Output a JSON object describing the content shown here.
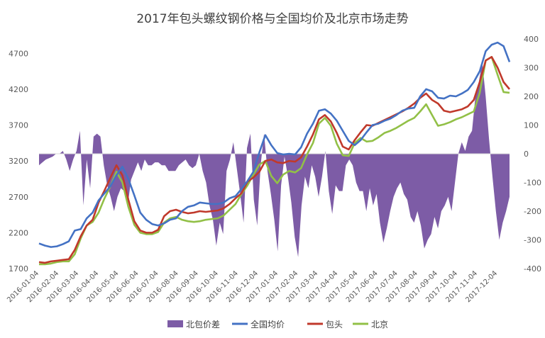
{
  "chart_data": {
    "type": "line",
    "title": "2017年包头螺纹钢价格与全国均价及北京市场走势",
    "legend_position": "bottom",
    "x_ticks": [
      "2016-01-04",
      "2016-02-04",
      "2016-03-04",
      "2016-04-04",
      "2016-05-04",
      "2016-06-04",
      "2016-07-04",
      "2016-08-04",
      "2016-09-04",
      "2016-10-04",
      "2016-11-04",
      "2016-12-04",
      "2017-01-04",
      "2017-02-04",
      "2017-03-04",
      "2017-04-04",
      "2017-05-04",
      "2017-06-04",
      "2017-07-04",
      "2017-08-04",
      "2017-09-04",
      "2017-10-04",
      "2017-11-04",
      "2017-12-04"
    ],
    "y_left": {
      "min": 1700,
      "max": 4900,
      "ticks": [
        1700,
        2200,
        2700,
        3200,
        3700,
        4200,
        4700
      ]
    },
    "y_right": {
      "min": -400,
      "max": 400,
      "ticks": [
        -400,
        -300,
        -200,
        -100,
        0,
        100,
        200,
        300,
        400
      ]
    },
    "grid": false,
    "series": [
      {
        "name": "北包价差",
        "kind": "area",
        "axis": "right",
        "color": "#7d5ca6",
        "values": [
          -40,
          -30,
          -20,
          -15,
          -10,
          0,
          0,
          10,
          -20,
          -60,
          -20,
          10,
          80,
          -180,
          -20,
          -120,
          60,
          70,
          60,
          -40,
          -110,
          -150,
          -200,
          -150,
          -120,
          -130,
          -180,
          -90,
          -60,
          -30,
          -60,
          -20,
          -40,
          -40,
          -30,
          -30,
          -40,
          -40,
          -60,
          -60,
          -60,
          -40,
          -30,
          -20,
          -40,
          -50,
          -40,
          0,
          -60,
          -100,
          -180,
          -230,
          -320,
          -240,
          -280,
          -60,
          -20,
          40,
          -50,
          -140,
          -240,
          20,
          70,
          -160,
          -250,
          -40,
          70,
          -60,
          -140,
          -230,
          -340,
          -110,
          -10,
          -80,
          -170,
          -290,
          -360,
          -180,
          -80,
          -120,
          -40,
          -80,
          -150,
          -80,
          10,
          -130,
          -210,
          -110,
          -130,
          -130,
          -40,
          -20,
          -40,
          -100,
          -130,
          -130,
          -200,
          -120,
          -180,
          -140,
          -240,
          -310,
          -260,
          -200,
          -150,
          -120,
          -100,
          -140,
          -160,
          -220,
          -240,
          -200,
          -250,
          -330,
          -300,
          -280,
          -220,
          -260,
          -200,
          -180,
          -150,
          -200,
          -100,
          0,
          40,
          10,
          60,
          80,
          200,
          250,
          320,
          200,
          50,
          -80,
          -200,
          -300,
          -240,
          -200,
          -150
        ],
        "note_values": "-400..400"
      },
      {
        "name": "全国均价",
        "kind": "line",
        "axis": "left",
        "color": "#4472c4",
        "values": [
          2050,
          2020,
          2000,
          2010,
          2040,
          2080,
          2230,
          2250,
          2400,
          2480,
          2650,
          2750,
          2850,
          3000,
          3120,
          2950,
          2720,
          2480,
          2380,
          2320,
          2300,
          2330,
          2380,
          2400,
          2500,
          2560,
          2580,
          2620,
          2610,
          2600,
          2600,
          2620,
          2680,
          2710,
          2810,
          2920,
          3050,
          3320,
          3560,
          3420,
          3310,
          3290,
          3300,
          3290,
          3390,
          3580,
          3720,
          3900,
          3920,
          3860,
          3760,
          3620,
          3480,
          3420,
          3490,
          3600,
          3700,
          3720,
          3760,
          3790,
          3840,
          3900,
          3930,
          3940,
          4100,
          4200,
          4170,
          4080,
          4070,
          4110,
          4100,
          4140,
          4190,
          4300,
          4450,
          4730,
          4820,
          4850,
          4800,
          4580
        ]
      },
      {
        "name": "包头",
        "kind": "line",
        "axis": "left",
        "color": "#c0392b",
        "values": [
          1790,
          1780,
          1800,
          1810,
          1820,
          1830,
          1960,
          2150,
          2300,
          2380,
          2620,
          2790,
          2970,
          3140,
          3000,
          2660,
          2360,
          2230,
          2200,
          2200,
          2240,
          2430,
          2500,
          2520,
          2490,
          2470,
          2480,
          2500,
          2490,
          2500,
          2510,
          2540,
          2600,
          2680,
          2750,
          2910,
          2970,
          3050,
          3200,
          3220,
          3180,
          3170,
          3200,
          3190,
          3250,
          3400,
          3570,
          3780,
          3840,
          3750,
          3590,
          3400,
          3360,
          3490,
          3600,
          3700,
          3690,
          3730,
          3770,
          3810,
          3850,
          3890,
          3940,
          4000,
          4080,
          4140,
          4050,
          4000,
          3900,
          3880,
          3900,
          3920,
          3960,
          4050,
          4300,
          4600,
          4650,
          4500,
          4300,
          4200
        ]
      },
      {
        "name": "北京",
        "kind": "line",
        "axis": "left",
        "color": "#92c047",
        "values": [
          1760,
          1760,
          1770,
          1790,
          1800,
          1800,
          1900,
          2120,
          2300,
          2350,
          2480,
          2680,
          2850,
          3050,
          2900,
          2560,
          2310,
          2200,
          2180,
          2180,
          2210,
          2340,
          2400,
          2420,
          2380,
          2360,
          2350,
          2360,
          2380,
          2390,
          2400,
          2440,
          2520,
          2600,
          2740,
          2860,
          3010,
          3150,
          3200,
          2990,
          2890,
          3010,
          3060,
          3040,
          3100,
          3290,
          3450,
          3720,
          3800,
          3690,
          3440,
          3280,
          3270,
          3450,
          3520,
          3470,
          3480,
          3530,
          3590,
          3620,
          3660,
          3710,
          3760,
          3800,
          3890,
          3990,
          3840,
          3690,
          3710,
          3740,
          3780,
          3810,
          3850,
          3890,
          4150,
          4600,
          4650,
          4400,
          4160,
          4150
        ]
      }
    ]
  }
}
